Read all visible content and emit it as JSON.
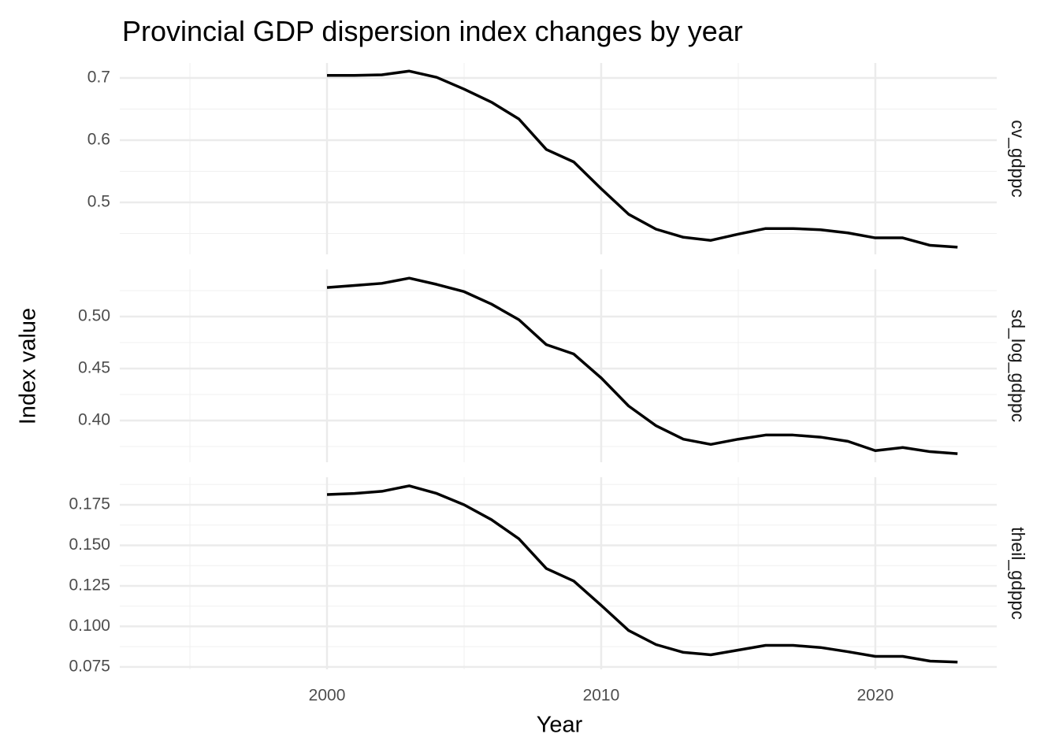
{
  "chart_data": {
    "type": "line",
    "title": "Provincial GDP dispersion index changes by year",
    "x_label": "Year",
    "y_label": "Index value",
    "x": [
      2000,
      2001,
      2002,
      2003,
      2004,
      2005,
      2006,
      2007,
      2008,
      2009,
      2010,
      2011,
      2012,
      2013,
      2014,
      2015,
      2016,
      2017,
      2018,
      2019,
      2020,
      2021,
      2022,
      2023
    ],
    "xlim": [
      1992.44,
      2024.43
    ],
    "xticks": [
      2000,
      2010,
      2020
    ],
    "grid": true,
    "series": [
      {
        "name": "cv_gdppc",
        "color": "#000000",
        "values": [
          0.704,
          0.704,
          0.705,
          0.711,
          0.701,
          0.682,
          0.661,
          0.634,
          0.585,
          0.565,
          0.522,
          0.481,
          0.457,
          0.444,
          0.439,
          0.449,
          0.458,
          0.458,
          0.456,
          0.451,
          0.443,
          0.443,
          0.431,
          0.428
        ],
        "ylim": [
          0.4165,
          0.724
        ],
        "yticks": [
          0.5,
          0.6,
          0.7
        ]
      },
      {
        "name": "sd_log_gdppc",
        "color": "#000000",
        "values": [
          0.528,
          0.53,
          0.532,
          0.537,
          0.531,
          0.524,
          0.512,
          0.497,
          0.473,
          0.464,
          0.441,
          0.414,
          0.395,
          0.382,
          0.377,
          0.382,
          0.386,
          0.386,
          0.384,
          0.38,
          0.371,
          0.374,
          0.37,
          0.368
        ],
        "ylim": [
          0.3598,
          0.5455
        ],
        "yticks": [
          {
            "value": 0.4,
            "label": "0.40"
          },
          0.45,
          {
            "value": 0.5,
            "label": "0.50"
          }
        ]
      },
      {
        "name": "theil_gdppc",
        "color": "#000000",
        "values": [
          0.1813,
          0.182,
          0.1833,
          0.1867,
          0.182,
          0.175,
          0.1658,
          0.154,
          0.1357,
          0.128,
          0.113,
          0.0975,
          0.0888,
          0.084,
          0.0825,
          0.0854,
          0.0883,
          0.0883,
          0.087,
          0.0844,
          0.0815,
          0.0815,
          0.0786,
          0.078
        ],
        "ylim": [
          0.0735,
          0.192
        ],
        "yticks": [
          0.075,
          {
            "value": 0.1,
            "label": "0.100"
          },
          0.125,
          {
            "value": 0.15,
            "label": "0.150"
          },
          0.175
        ]
      }
    ]
  }
}
